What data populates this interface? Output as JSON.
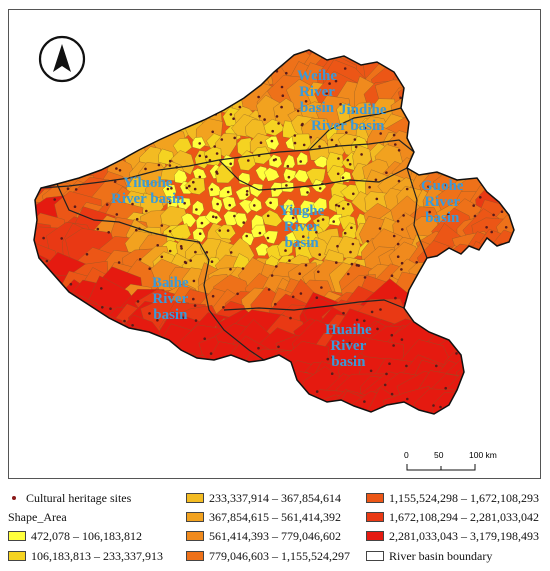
{
  "basins": [
    {
      "id": "weihe",
      "lines": [
        "Weihe",
        "River",
        "basin"
      ]
    },
    {
      "id": "jindihe",
      "lines": [
        "Jindihe",
        "River basin"
      ]
    },
    {
      "id": "yiluohe",
      "lines": [
        "Yiluohe",
        "River basin"
      ]
    },
    {
      "id": "yinghe",
      "lines": [
        "Yinghe",
        "River",
        "basin"
      ]
    },
    {
      "id": "guohe",
      "lines": [
        "Guohe",
        "River",
        "basin"
      ]
    },
    {
      "id": "baihe",
      "lines": [
        "Baihe",
        "River",
        "basin"
      ]
    },
    {
      "id": "huaihe",
      "lines": [
        "Huaihe",
        "River",
        "basin"
      ]
    }
  ],
  "scale_bar": {
    "ticks": [
      "0",
      "50",
      "100 km"
    ]
  },
  "compass": {
    "icon": "north-arrow-icon"
  },
  "legend": {
    "heritage_label": "Cultural heritage sites",
    "field_label": "Shape_Area",
    "boundary_label": "River basin boundary",
    "classes": [
      {
        "label": "472,078 – 106,183,812",
        "color": "#ffff3c"
      },
      {
        "label": "106,183,813 – 233,337,913",
        "color": "#f5d321"
      },
      {
        "label": "233,337,914 – 367,854,614",
        "color": "#f3bb22"
      },
      {
        "label": "367,854,615 – 561,414,392",
        "color": "#f2a21f"
      },
      {
        "label": "561,414,393 – 779,046,602",
        "color": "#f08a1d"
      },
      {
        "label": "779,046,603 – 1,155,524,297",
        "color": "#ee7119"
      },
      {
        "label": "1,155,524,298 – 1,672,108,293",
        "color": "#ec5616"
      },
      {
        "label": "1,672,108,294 – 2,281,033,042",
        "color": "#e93914"
      },
      {
        "label": "2,281,033,043 – 3,179,198,493",
        "color": "#e51a10"
      }
    ]
  }
}
